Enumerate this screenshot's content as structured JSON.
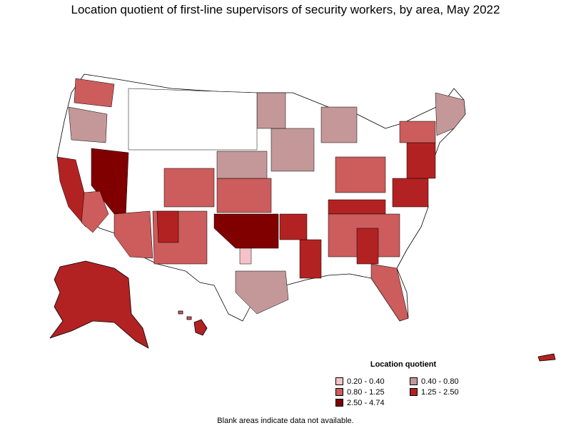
{
  "title": "Location quotient of first-line supervisors of security workers, by area, May 2022",
  "legend": {
    "title": "Location quotient",
    "items": [
      {
        "label": "0.20 - 0.40",
        "color": "#f4c2c8"
      },
      {
        "label": "0.40 - 0.80",
        "color": "#c49898"
      },
      {
        "label": "0.80 - 1.25",
        "color": "#cd5c5c"
      },
      {
        "label": "1.25 - 2.50",
        "color": "#b22222"
      },
      {
        "label": "2.50 - 4.74",
        "color": "#800000"
      }
    ]
  },
  "note": "Blank areas indicate data not available.",
  "colors": {
    "blank": "#ffffff",
    "border": "#000000"
  }
}
